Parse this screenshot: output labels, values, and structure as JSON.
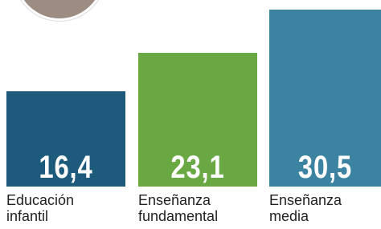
{
  "chart_data": {
    "type": "bar",
    "categories": [
      "Educación infantil",
      "Enseñanza fundamental",
      "Enseñanza media"
    ],
    "values": [
      16.4,
      23.1,
      30.5
    ],
    "value_labels": [
      "16,4",
      "23,1",
      "30,5"
    ],
    "colors": [
      "#1d5a7b",
      "#6aa843",
      "#3b83a1"
    ]
  }
}
